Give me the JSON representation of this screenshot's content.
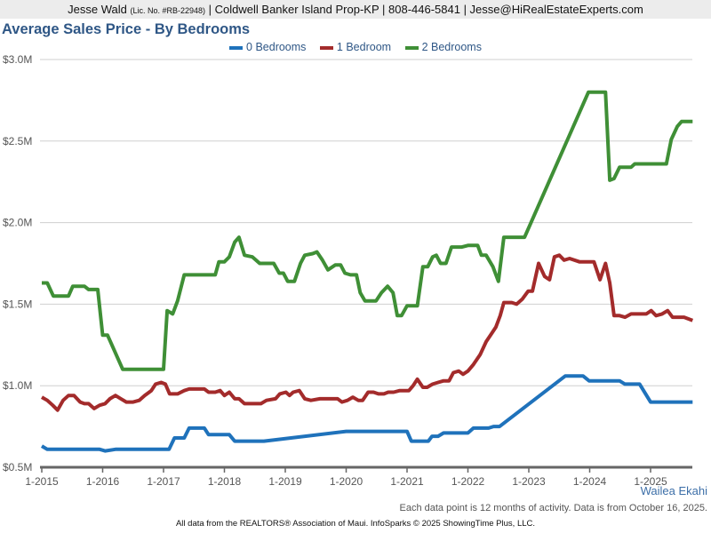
{
  "header": {
    "agent": "Jesse Wald",
    "license": "(Lic. No. #RB-22948)",
    "rest": "| Coldwell Banker Island Prop-KP | 808-446-5841 | Jesse@HiRealEstateExperts.com"
  },
  "area_name": "Wailea Ekahi",
  "note": "Each data point is 12 months of activity. Data is from October 16, 2025.",
  "footer": "All data from the REALTORS® Association of Maui. InfoSparks © 2025 ShowingTime Plus, LLC.",
  "chart_data": {
    "type": "line",
    "title": "Average Sales Price - By Bedrooms",
    "xlabel": "",
    "ylabel": "",
    "xlim": [
      2015.0,
      2025.69
    ],
    "ylim": [
      0.5,
      3.0
    ],
    "grid": true,
    "legend_position": "top-center",
    "x_ticks": [
      {
        "value": 2015,
        "label": "1-2015"
      },
      {
        "value": 2016,
        "label": "1-2016"
      },
      {
        "value": 2017,
        "label": "1-2017"
      },
      {
        "value": 2018,
        "label": "1-2018"
      },
      {
        "value": 2019,
        "label": "1-2019"
      },
      {
        "value": 2020,
        "label": "1-2020"
      },
      {
        "value": 2021,
        "label": "1-2021"
      },
      {
        "value": 2022,
        "label": "1-2022"
      },
      {
        "value": 2023,
        "label": "1-2023"
      },
      {
        "value": 2024,
        "label": "1-2024"
      },
      {
        "value": 2025,
        "label": "1-2025"
      }
    ],
    "y_ticks": [
      {
        "value": 0.5,
        "label": "$0.5M"
      },
      {
        "value": 1.0,
        "label": "$1.0M"
      },
      {
        "value": 1.5,
        "label": "$1.5M"
      },
      {
        "value": 2.0,
        "label": "$2.0M"
      },
      {
        "value": 2.5,
        "label": "$2.5M"
      },
      {
        "value": 3.0,
        "label": "$3.0M"
      }
    ],
    "series": [
      {
        "name": "0 Bedrooms",
        "color": "#1f72bb",
        "points": [
          [
            2015.0,
            0.63
          ],
          [
            2015.09,
            0.61
          ],
          [
            2015.95,
            0.61
          ],
          [
            2016.04,
            0.6
          ],
          [
            2016.21,
            0.61
          ],
          [
            2016.42,
            0.61
          ],
          [
            2017.09,
            0.61
          ],
          [
            2017.18,
            0.68
          ],
          [
            2017.34,
            0.68
          ],
          [
            2017.42,
            0.74
          ],
          [
            2017.67,
            0.74
          ],
          [
            2017.74,
            0.7
          ],
          [
            2018.08,
            0.7
          ],
          [
            2018.17,
            0.66
          ],
          [
            2018.65,
            0.66
          ],
          [
            2020.0,
            0.72
          ],
          [
            2021.0,
            0.72
          ],
          [
            2021.07,
            0.66
          ],
          [
            2021.35,
            0.66
          ],
          [
            2021.41,
            0.69
          ],
          [
            2021.51,
            0.69
          ],
          [
            2021.6,
            0.71
          ],
          [
            2022.0,
            0.71
          ],
          [
            2022.09,
            0.74
          ],
          [
            2022.34,
            0.74
          ],
          [
            2022.42,
            0.75
          ],
          [
            2022.52,
            0.75
          ],
          [
            2023.6,
            1.06
          ],
          [
            2023.89,
            1.06
          ],
          [
            2023.99,
            1.03
          ],
          [
            2024.49,
            1.03
          ],
          [
            2024.58,
            1.01
          ],
          [
            2024.82,
            1.01
          ],
          [
            2025.0,
            0.9
          ],
          [
            2025.69,
            0.9
          ]
        ]
      },
      {
        "name": "1 Bedroom",
        "color": "#a32b2b",
        "points": [
          [
            2015.0,
            0.93
          ],
          [
            2015.09,
            0.91
          ],
          [
            2015.18,
            0.88
          ],
          [
            2015.26,
            0.85
          ],
          [
            2015.35,
            0.91
          ],
          [
            2015.44,
            0.94
          ],
          [
            2015.53,
            0.94
          ],
          [
            2015.63,
            0.9
          ],
          [
            2015.7,
            0.89
          ],
          [
            2015.77,
            0.89
          ],
          [
            2015.86,
            0.86
          ],
          [
            2015.95,
            0.88
          ],
          [
            2016.04,
            0.89
          ],
          [
            2016.12,
            0.92
          ],
          [
            2016.21,
            0.94
          ],
          [
            2016.3,
            0.92
          ],
          [
            2016.39,
            0.9
          ],
          [
            2016.5,
            0.9
          ],
          [
            2016.6,
            0.91
          ],
          [
            2016.69,
            0.94
          ],
          [
            2016.8,
            0.97
          ],
          [
            2016.87,
            1.01
          ],
          [
            2016.96,
            1.02
          ],
          [
            2017.03,
            1.01
          ],
          [
            2017.1,
            0.95
          ],
          [
            2017.23,
            0.95
          ],
          [
            2017.34,
            0.97
          ],
          [
            2017.42,
            0.98
          ],
          [
            2017.67,
            0.98
          ],
          [
            2017.74,
            0.96
          ],
          [
            2017.85,
            0.96
          ],
          [
            2017.93,
            0.97
          ],
          [
            2018.0,
            0.94
          ],
          [
            2018.08,
            0.96
          ],
          [
            2018.17,
            0.92
          ],
          [
            2018.24,
            0.92
          ],
          [
            2018.33,
            0.89
          ],
          [
            2018.4,
            0.89
          ],
          [
            2018.6,
            0.89
          ],
          [
            2018.69,
            0.91
          ],
          [
            2018.84,
            0.92
          ],
          [
            2018.91,
            0.95
          ],
          [
            2019.01,
            0.96
          ],
          [
            2019.07,
            0.94
          ],
          [
            2019.13,
            0.96
          ],
          [
            2019.23,
            0.97
          ],
          [
            2019.32,
            0.92
          ],
          [
            2019.42,
            0.91
          ],
          [
            2019.57,
            0.92
          ],
          [
            2019.79,
            0.92
          ],
          [
            2019.86,
            0.92
          ],
          [
            2019.93,
            0.9
          ],
          [
            2020.02,
            0.91
          ],
          [
            2020.11,
            0.93
          ],
          [
            2020.2,
            0.91
          ],
          [
            2020.27,
            0.91
          ],
          [
            2020.36,
            0.96
          ],
          [
            2020.45,
            0.96
          ],
          [
            2020.53,
            0.95
          ],
          [
            2020.62,
            0.95
          ],
          [
            2020.69,
            0.96
          ],
          [
            2020.78,
            0.96
          ],
          [
            2020.88,
            0.97
          ],
          [
            2020.96,
            0.97
          ],
          [
            2021.03,
            0.97
          ],
          [
            2021.1,
            1.0
          ],
          [
            2021.17,
            1.04
          ],
          [
            2021.26,
            0.99
          ],
          [
            2021.33,
            0.99
          ],
          [
            2021.42,
            1.01
          ],
          [
            2021.51,
            1.02
          ],
          [
            2021.6,
            1.03
          ],
          [
            2021.69,
            1.03
          ],
          [
            2021.76,
            1.08
          ],
          [
            2021.85,
            1.09
          ],
          [
            2021.92,
            1.07
          ],
          [
            2022.0,
            1.09
          ],
          [
            2022.09,
            1.13
          ],
          [
            2022.2,
            1.19
          ],
          [
            2022.3,
            1.27
          ],
          [
            2022.39,
            1.32
          ],
          [
            2022.46,
            1.36
          ],
          [
            2022.53,
            1.43
          ],
          [
            2022.59,
            1.51
          ],
          [
            2022.72,
            1.51
          ],
          [
            2022.8,
            1.5
          ],
          [
            2022.89,
            1.53
          ],
          [
            2022.99,
            1.58
          ],
          [
            2023.06,
            1.58
          ],
          [
            2023.16,
            1.75
          ],
          [
            2023.26,
            1.67
          ],
          [
            2023.34,
            1.65
          ],
          [
            2023.42,
            1.79
          ],
          [
            2023.5,
            1.8
          ],
          [
            2023.58,
            1.77
          ],
          [
            2023.67,
            1.78
          ],
          [
            2023.83,
            1.76
          ],
          [
            2024.07,
            1.76
          ],
          [
            2024.17,
            1.65
          ],
          [
            2024.26,
            1.75
          ],
          [
            2024.33,
            1.63
          ],
          [
            2024.4,
            1.43
          ],
          [
            2024.49,
            1.43
          ],
          [
            2024.58,
            1.42
          ],
          [
            2024.68,
            1.44
          ],
          [
            2024.93,
            1.44
          ],
          [
            2025.01,
            1.46
          ],
          [
            2025.09,
            1.43
          ],
          [
            2025.19,
            1.44
          ],
          [
            2025.28,
            1.46
          ],
          [
            2025.36,
            1.42
          ],
          [
            2025.47,
            1.42
          ],
          [
            2025.55,
            1.42
          ],
          [
            2025.69,
            1.4
          ]
        ]
      },
      {
        "name": "2 Bedrooms",
        "color": "#3f8f36",
        "points": [
          [
            2015.0,
            1.63
          ],
          [
            2015.09,
            1.63
          ],
          [
            2015.19,
            1.55
          ],
          [
            2015.44,
            1.55
          ],
          [
            2015.51,
            1.61
          ],
          [
            2015.7,
            1.61
          ],
          [
            2015.77,
            1.59
          ],
          [
            2015.92,
            1.59
          ],
          [
            2016.0,
            1.31
          ],
          [
            2016.08,
            1.31
          ],
          [
            2016.33,
            1.1
          ],
          [
            2017.0,
            1.1
          ],
          [
            2017.06,
            1.46
          ],
          [
            2017.15,
            1.44
          ],
          [
            2017.23,
            1.52
          ],
          [
            2017.34,
            1.68
          ],
          [
            2017.85,
            1.68
          ],
          [
            2017.91,
            1.76
          ],
          [
            2018.0,
            1.76
          ],
          [
            2018.08,
            1.79
          ],
          [
            2018.17,
            1.88
          ],
          [
            2018.24,
            1.91
          ],
          [
            2018.33,
            1.8
          ],
          [
            2018.46,
            1.79
          ],
          [
            2018.58,
            1.75
          ],
          [
            2018.81,
            1.75
          ],
          [
            2018.9,
            1.69
          ],
          [
            2018.97,
            1.69
          ],
          [
            2019.04,
            1.64
          ],
          [
            2019.15,
            1.64
          ],
          [
            2019.25,
            1.75
          ],
          [
            2019.32,
            1.8
          ],
          [
            2019.45,
            1.81
          ],
          [
            2019.52,
            1.82
          ],
          [
            2019.61,
            1.77
          ],
          [
            2019.7,
            1.71
          ],
          [
            2019.82,
            1.74
          ],
          [
            2019.91,
            1.74
          ],
          [
            2019.98,
            1.69
          ],
          [
            2020.07,
            1.68
          ],
          [
            2020.17,
            1.68
          ],
          [
            2020.23,
            1.57
          ],
          [
            2020.31,
            1.52
          ],
          [
            2020.49,
            1.52
          ],
          [
            2020.58,
            1.57
          ],
          [
            2020.68,
            1.61
          ],
          [
            2020.77,
            1.57
          ],
          [
            2020.84,
            1.43
          ],
          [
            2020.91,
            1.43
          ],
          [
            2021.0,
            1.49
          ],
          [
            2021.17,
            1.49
          ],
          [
            2021.26,
            1.73
          ],
          [
            2021.34,
            1.73
          ],
          [
            2021.42,
            1.79
          ],
          [
            2021.48,
            1.8
          ],
          [
            2021.55,
            1.75
          ],
          [
            2021.64,
            1.75
          ],
          [
            2021.73,
            1.85
          ],
          [
            2021.9,
            1.85
          ],
          [
            2022.0,
            1.86
          ],
          [
            2022.16,
            1.86
          ],
          [
            2022.22,
            1.8
          ],
          [
            2022.3,
            1.8
          ],
          [
            2022.41,
            1.73
          ],
          [
            2022.5,
            1.64
          ],
          [
            2022.59,
            1.91
          ],
          [
            2022.93,
            1.91
          ],
          [
            2023.98,
            2.8
          ],
          [
            2024.26,
            2.8
          ],
          [
            2024.33,
            2.26
          ],
          [
            2024.4,
            2.27
          ],
          [
            2024.49,
            2.34
          ],
          [
            2024.68,
            2.34
          ],
          [
            2024.74,
            2.36
          ],
          [
            2025.26,
            2.36
          ],
          [
            2025.34,
            2.51
          ],
          [
            2025.44,
            2.59
          ],
          [
            2025.51,
            2.62
          ],
          [
            2025.69,
            2.62
          ]
        ]
      }
    ]
  }
}
